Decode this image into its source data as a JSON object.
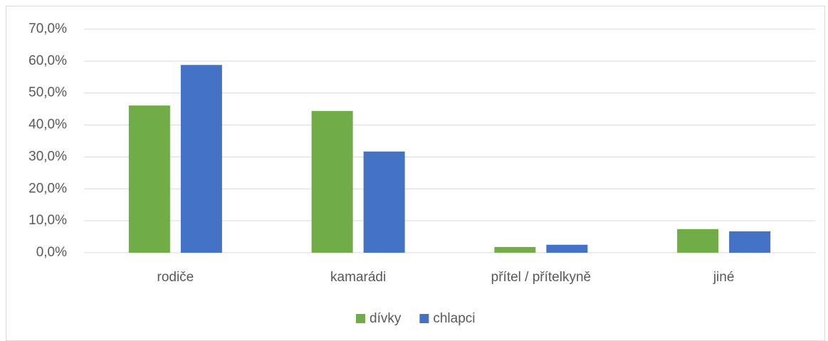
{
  "chart_data": {
    "type": "bar",
    "categories": [
      "rodiče",
      "kamarádi",
      "přítel / přítelkyně",
      "jiné"
    ],
    "series": [
      {
        "name": "dívky",
        "color": "#70ad47",
        "values": [
          46.1,
          44.4,
          1.8,
          7.4
        ]
      },
      {
        "name": "chlapci",
        "color": "#4472c4",
        "values": [
          58.8,
          31.7,
          2.5,
          6.7
        ]
      }
    ],
    "ylim": [
      0,
      70
    ],
    "yticks": [
      {
        "value": 0,
        "label": "0,0%"
      },
      {
        "value": 10,
        "label": "10,0%"
      },
      {
        "value": 20,
        "label": "20,0%"
      },
      {
        "value": 30,
        "label": "30,0%"
      },
      {
        "value": 40,
        "label": "40,0%"
      },
      {
        "value": 50,
        "label": "50,0%"
      },
      {
        "value": 60,
        "label": "60,0%"
      },
      {
        "value": 70,
        "label": "70,0%"
      }
    ],
    "grid": true,
    "legend": "bottom"
  }
}
